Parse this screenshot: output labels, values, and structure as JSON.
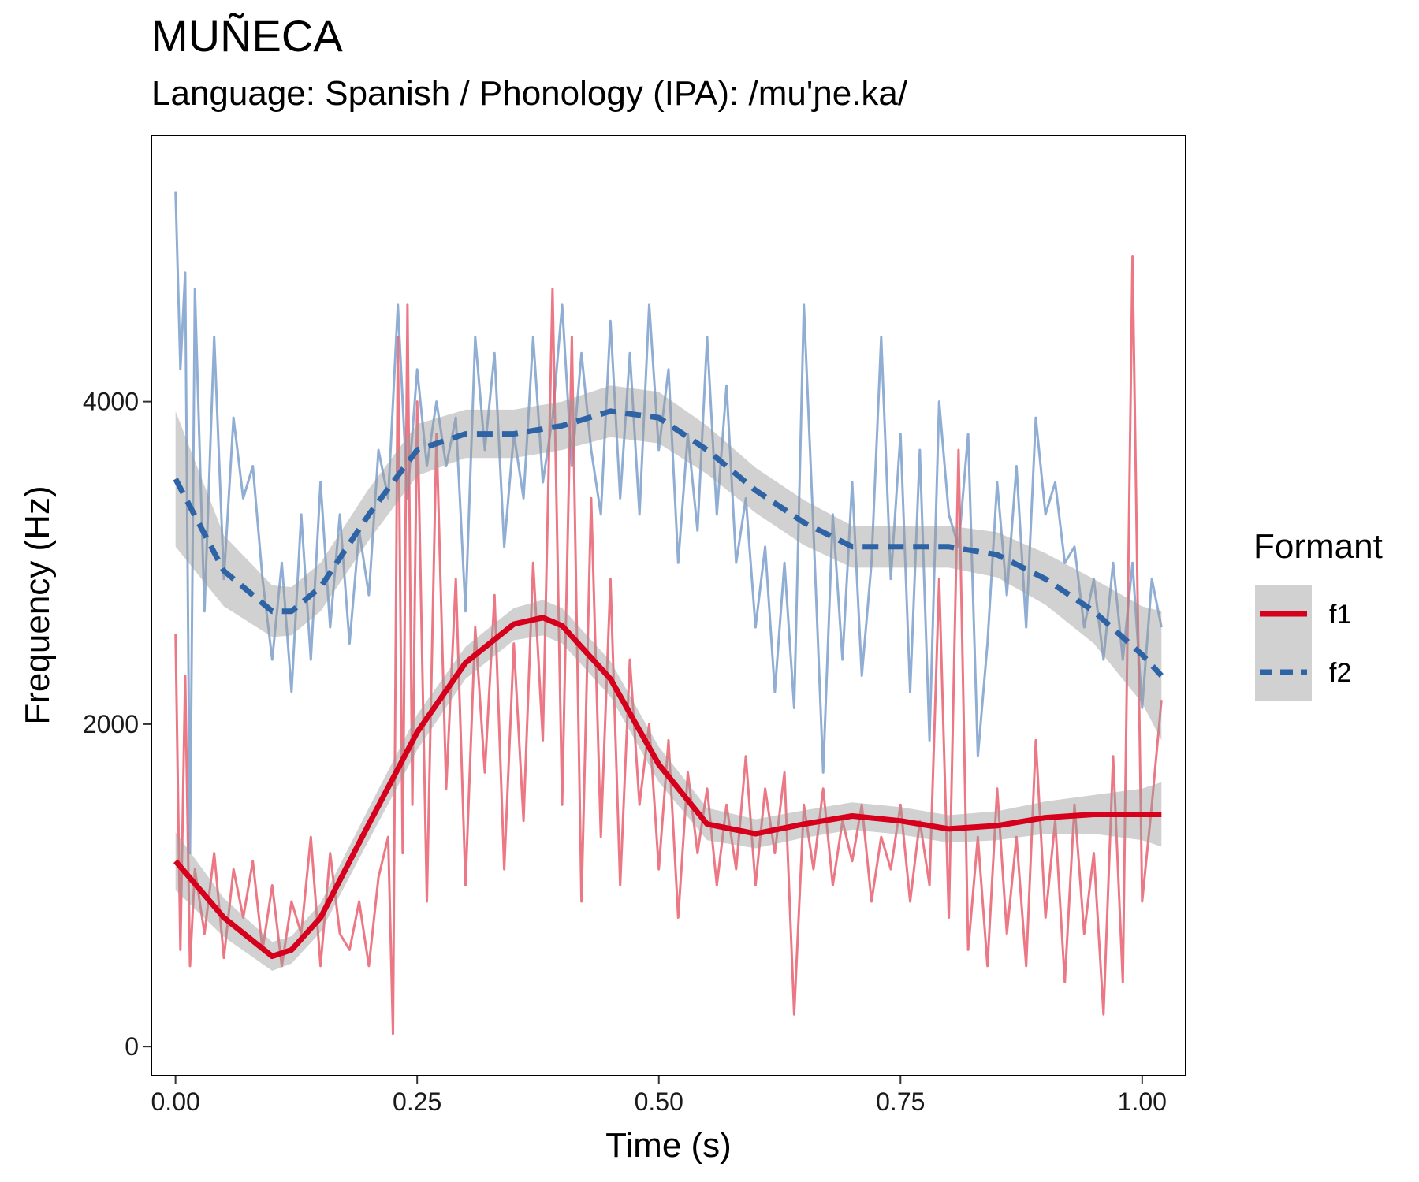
{
  "title": "MUÑECA",
  "subtitle": "Language: Spanish / Phonology (IPA): /mu'ɲe.ka/",
  "chart_data": {
    "type": "line",
    "xlabel": "Time (s)",
    "ylabel": "Frequency (Hz)",
    "xlim": [
      -0.025,
      1.045
    ],
    "ylim": [
      -180,
      5650
    ],
    "x_ticks": [
      0.0,
      0.25,
      0.5,
      0.75,
      1.0
    ],
    "x_tick_labels": [
      "0.00",
      "0.25",
      "0.50",
      "0.75",
      "1.00"
    ],
    "y_ticks": [
      0,
      2000,
      4000
    ],
    "y_tick_labels": [
      "0",
      "2000",
      "4000"
    ],
    "grid": false,
    "legend": {
      "title": "Formant",
      "placement": "right",
      "entries": [
        "f1",
        "f2"
      ]
    },
    "colors": {
      "f1": "#d7001c",
      "f1_raw": "#e8606f",
      "f2": "#2e63a6",
      "f2_raw": "#7d9fcb",
      "band": "#999999"
    },
    "series": [
      {
        "name": "f1",
        "smooth": {
          "x": [
            0.0,
            0.05,
            0.1,
            0.12,
            0.15,
            0.2,
            0.25,
            0.3,
            0.35,
            0.38,
            0.4,
            0.45,
            0.5,
            0.55,
            0.6,
            0.65,
            0.7,
            0.75,
            0.8,
            0.85,
            0.9,
            0.95,
            1.0,
            1.02
          ],
          "y": [
            1150,
            800,
            560,
            600,
            800,
            1380,
            1950,
            2380,
            2620,
            2660,
            2610,
            2280,
            1750,
            1380,
            1320,
            1380,
            1430,
            1400,
            1350,
            1370,
            1420,
            1440,
            1440,
            1440
          ],
          "se": [
            180,
            120,
            90,
            85,
            90,
            100,
            110,
            100,
            100,
            110,
            110,
            110,
            110,
            100,
            90,
            85,
            85,
            85,
            85,
            90,
            100,
            120,
            160,
            200
          ]
        },
        "raw": {
          "x": [
            0.0,
            0.005,
            0.01,
            0.015,
            0.02,
            0.03,
            0.04,
            0.05,
            0.06,
            0.07,
            0.08,
            0.09,
            0.1,
            0.11,
            0.12,
            0.13,
            0.14,
            0.15,
            0.16,
            0.17,
            0.18,
            0.19,
            0.2,
            0.21,
            0.22,
            0.225,
            0.23,
            0.235,
            0.24,
            0.245,
            0.25,
            0.26,
            0.27,
            0.28,
            0.29,
            0.3,
            0.31,
            0.32,
            0.33,
            0.34,
            0.35,
            0.36,
            0.37,
            0.38,
            0.39,
            0.4,
            0.41,
            0.42,
            0.43,
            0.44,
            0.45,
            0.46,
            0.47,
            0.48,
            0.49,
            0.5,
            0.51,
            0.52,
            0.53,
            0.54,
            0.55,
            0.56,
            0.57,
            0.58,
            0.59,
            0.6,
            0.61,
            0.62,
            0.63,
            0.64,
            0.65,
            0.66,
            0.67,
            0.68,
            0.69,
            0.7,
            0.71,
            0.72,
            0.73,
            0.74,
            0.75,
            0.76,
            0.77,
            0.78,
            0.79,
            0.8,
            0.81,
            0.82,
            0.83,
            0.84,
            0.85,
            0.86,
            0.87,
            0.88,
            0.89,
            0.9,
            0.91,
            0.92,
            0.93,
            0.94,
            0.95,
            0.96,
            0.97,
            0.98,
            0.99,
            1.0,
            1.01,
            1.02
          ],
          "y": [
            2560,
            600,
            2300,
            500,
            1100,
            700,
            1200,
            550,
            1100,
            800,
            1150,
            600,
            1000,
            500,
            900,
            700,
            1300,
            500,
            1200,
            700,
            600,
            900,
            500,
            1050,
            1300,
            80,
            4400,
            1200,
            4600,
            1500,
            4000,
            900,
            3800,
            1600,
            2900,
            1000,
            2600,
            1700,
            2800,
            1100,
            2500,
            1400,
            3000,
            1900,
            4700,
            1500,
            4400,
            900,
            3400,
            1300,
            2900,
            1000,
            2400,
            1500,
            2000,
            1100,
            1900,
            800,
            1700,
            1200,
            1600,
            1000,
            1500,
            1100,
            1800,
            1000,
            1600,
            1200,
            1700,
            200,
            1500,
            1100,
            1600,
            1000,
            1400,
            1150,
            1500,
            900,
            1300,
            1100,
            1500,
            900,
            1400,
            1000,
            2900,
            800,
            3700,
            600,
            1300,
            500,
            1600,
            700,
            1300,
            500,
            1900,
            800,
            1400,
            400,
            1500,
            700,
            1200,
            200,
            1800,
            400,
            4900,
            900,
            1500,
            2150
          ]
        }
      },
      {
        "name": "f2",
        "smooth": {
          "x": [
            0.0,
            0.05,
            0.1,
            0.12,
            0.15,
            0.2,
            0.25,
            0.3,
            0.35,
            0.4,
            0.45,
            0.5,
            0.55,
            0.6,
            0.65,
            0.7,
            0.75,
            0.8,
            0.85,
            0.9,
            0.95,
            1.0,
            1.02
          ],
          "y": [
            3520,
            2950,
            2700,
            2700,
            2850,
            3300,
            3700,
            3800,
            3800,
            3850,
            3940,
            3900,
            3700,
            3450,
            3250,
            3100,
            3100,
            3100,
            3050,
            2900,
            2700,
            2430,
            2300
          ],
          "se": [
            420,
            220,
            160,
            150,
            150,
            160,
            160,
            150,
            150,
            150,
            160,
            160,
            150,
            140,
            140,
            130,
            130,
            130,
            140,
            160,
            200,
            300,
            400
          ]
        },
        "raw": {
          "x": [
            0.0,
            0.005,
            0.01,
            0.015,
            0.02,
            0.03,
            0.04,
            0.05,
            0.06,
            0.07,
            0.08,
            0.09,
            0.1,
            0.11,
            0.12,
            0.13,
            0.14,
            0.15,
            0.16,
            0.17,
            0.18,
            0.19,
            0.2,
            0.21,
            0.22,
            0.23,
            0.24,
            0.25,
            0.26,
            0.27,
            0.28,
            0.29,
            0.3,
            0.31,
            0.32,
            0.33,
            0.34,
            0.35,
            0.36,
            0.37,
            0.38,
            0.39,
            0.4,
            0.41,
            0.42,
            0.43,
            0.44,
            0.45,
            0.46,
            0.47,
            0.48,
            0.49,
            0.5,
            0.51,
            0.52,
            0.53,
            0.54,
            0.55,
            0.56,
            0.57,
            0.58,
            0.59,
            0.6,
            0.61,
            0.62,
            0.63,
            0.64,
            0.65,
            0.66,
            0.67,
            0.68,
            0.69,
            0.7,
            0.71,
            0.72,
            0.73,
            0.74,
            0.75,
            0.76,
            0.77,
            0.78,
            0.79,
            0.8,
            0.81,
            0.82,
            0.83,
            0.84,
            0.85,
            0.86,
            0.87,
            0.88,
            0.89,
            0.9,
            0.91,
            0.92,
            0.93,
            0.94,
            0.95,
            0.96,
            0.97,
            0.98,
            0.99,
            1.0,
            1.01,
            1.02
          ],
          "y": [
            5300,
            4200,
            4800,
            1200,
            4700,
            2700,
            4400,
            2900,
            3900,
            3400,
            3600,
            2900,
            2400,
            3000,
            2200,
            3300,
            2400,
            3500,
            2600,
            3300,
            2500,
            3200,
            2800,
            3700,
            3400,
            4600,
            3400,
            4200,
            3600,
            4000,
            3600,
            3900,
            2700,
            4400,
            3700,
            4300,
            3100,
            3800,
            3400,
            4400,
            3500,
            3900,
            4600,
            3600,
            4300,
            3700,
            3300,
            4500,
            3400,
            4300,
            3300,
            4600,
            3700,
            4200,
            3000,
            3800,
            3200,
            4400,
            3300,
            4100,
            3000,
            3400,
            2600,
            3100,
            2200,
            3000,
            2100,
            4600,
            3200,
            1700,
            3300,
            2400,
            3500,
            2300,
            3000,
            4400,
            2900,
            3800,
            2200,
            3700,
            1900,
            4000,
            3300,
            3100,
            3800,
            1800,
            2500,
            3500,
            2800,
            3600,
            2600,
            3900,
            3300,
            3500,
            3000,
            3100,
            2600,
            2900,
            2400,
            3000,
            2400,
            3000,
            2100,
            2900,
            2600
          ]
        }
      }
    ]
  }
}
